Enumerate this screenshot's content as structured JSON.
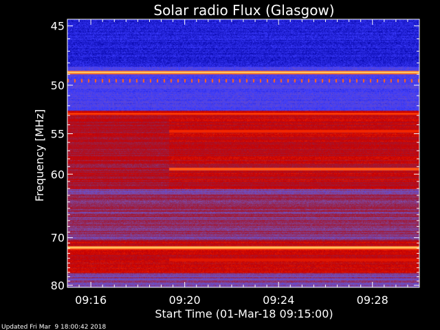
{
  "chart_data": {
    "type": "heatmap",
    "title": "Solar radio Flux (Glasgow)",
    "xlabel": "Start Time (01-Mar-18 09:15:00)",
    "ylabel": "Frequency [MHz]",
    "x_ticks": [
      "09:16",
      "09:20",
      "09:24",
      "09:28"
    ],
    "x_tick_minutes": [
      1,
      5,
      9,
      13
    ],
    "x_range_minutes": [
      0,
      15
    ],
    "y_ticks": [
      45,
      50,
      55,
      60,
      70,
      80
    ],
    "y_range_mhz": [
      44.5,
      80.5
    ],
    "y_scale": "reciprocal",
    "grid": false,
    "colormap": [
      "#000000",
      "#0000a0",
      "#3c3cff",
      "#7850b4",
      "#9b1c3c",
      "#c80000",
      "#ff3200",
      "#ff8c32",
      "#ffff96"
    ],
    "bright_bands_mhz": [
      {
        "mhz": 48.8,
        "level": "saturated"
      },
      {
        "mhz": 52.8,
        "level": "high"
      },
      {
        "mhz": 71.8,
        "level": "saturated"
      }
    ],
    "event_start": "09:19:20",
    "footer": "Updated Fri Mar  9 18:00:42 2018"
  }
}
